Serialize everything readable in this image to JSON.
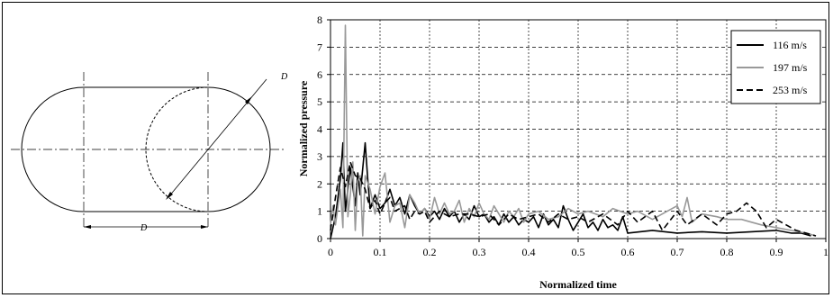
{
  "diagram": {
    "diameter_label_diag": "D",
    "diameter_label_bottom": "D"
  },
  "chart_data": {
    "type": "line",
    "xlabel": "Normalized time",
    "ylabel": "Normalized pressure",
    "xlim": [
      0,
      1
    ],
    "ylim": [
      0,
      8
    ],
    "xticks": [
      0,
      0.1,
      0.2,
      0.3,
      0.4,
      0.5,
      0.6,
      0.7,
      0.8,
      0.9,
      1
    ],
    "xtick_labels": [
      "0",
      "0.1",
      "0.2",
      "0.3",
      "0.4",
      "0.5",
      "0.6",
      "0.7",
      "0.8",
      "0.9",
      "1"
    ],
    "yticks": [
      0,
      1,
      2,
      3,
      4,
      5,
      6,
      7,
      8
    ],
    "ytick_labels": [
      "0",
      "1",
      "2",
      "3",
      "4",
      "5",
      "6",
      "7",
      "8"
    ],
    "grid": "dashed",
    "legend_position": "top-right",
    "series": [
      {
        "name": "116 m/s",
        "color": "#000000",
        "dash": "solid",
        "x": [
          0,
          0.01,
          0.02,
          0.025,
          0.03,
          0.04,
          0.05,
          0.055,
          0.06,
          0.07,
          0.075,
          0.08,
          0.09,
          0.1,
          0.11,
          0.12,
          0.13,
          0.14,
          0.15,
          0.16,
          0.17,
          0.18,
          0.19,
          0.2,
          0.21,
          0.22,
          0.23,
          0.24,
          0.25,
          0.26,
          0.27,
          0.28,
          0.29,
          0.3,
          0.31,
          0.32,
          0.33,
          0.34,
          0.35,
          0.36,
          0.37,
          0.38,
          0.39,
          0.4,
          0.41,
          0.42,
          0.43,
          0.44,
          0.45,
          0.46,
          0.47,
          0.48,
          0.49,
          0.5,
          0.51,
          0.52,
          0.53,
          0.54,
          0.55,
          0.56,
          0.57,
          0.58,
          0.59,
          0.6,
          0.65,
          0.7,
          0.75,
          0.8,
          0.85,
          0.9,
          0.93,
          0.95,
          0.97
        ],
        "values": [
          0,
          0.8,
          2.2,
          3.5,
          1.0,
          2.6,
          1.2,
          2.4,
          1.6,
          3.5,
          2.2,
          1.1,
          1.6,
          1.1,
          1.3,
          1.8,
          1.2,
          1.5,
          0.9,
          1.6,
          1.2,
          0.9,
          1.1,
          0.8,
          1.0,
          0.7,
          1.1,
          0.8,
          1.0,
          0.6,
          0.9,
          0.7,
          1.2,
          0.8,
          0.9,
          0.6,
          0.8,
          0.5,
          0.9,
          0.6,
          0.8,
          0.5,
          0.7,
          0.6,
          0.8,
          0.4,
          0.9,
          0.5,
          0.7,
          0.4,
          1.2,
          0.7,
          0.3,
          0.6,
          0.9,
          0.4,
          0.6,
          0.3,
          0.7,
          0.4,
          0.5,
          0.3,
          0.8,
          0.2,
          0.3,
          0.2,
          0.25,
          0.2,
          0.25,
          0.3,
          0.2,
          0.2,
          0.1
        ]
      },
      {
        "name": "197 m/s",
        "color": "#999999",
        "dash": "solid",
        "x": [
          0,
          0.005,
          0.01,
          0.02,
          0.025,
          0.03,
          0.035,
          0.04,
          0.045,
          0.05,
          0.055,
          0.06,
          0.065,
          0.07,
          0.08,
          0.09,
          0.1,
          0.11,
          0.12,
          0.13,
          0.14,
          0.15,
          0.16,
          0.17,
          0.18,
          0.19,
          0.2,
          0.21,
          0.22,
          0.23,
          0.24,
          0.25,
          0.26,
          0.27,
          0.28,
          0.29,
          0.3,
          0.31,
          0.32,
          0.33,
          0.34,
          0.35,
          0.36,
          0.37,
          0.38,
          0.39,
          0.4,
          0.42,
          0.44,
          0.46,
          0.48,
          0.5,
          0.52,
          0.55,
          0.57,
          0.6,
          0.62,
          0.65,
          0.68,
          0.7,
          0.71,
          0.72,
          0.73,
          0.75,
          0.78,
          0.8,
          0.83,
          0.85,
          0.87,
          0.9,
          0.93,
          0.96,
          0.98
        ],
        "values": [
          0.5,
          1.2,
          0.5,
          1.8,
          0.4,
          7.8,
          0.8,
          1.6,
          2.8,
          0.3,
          2.1,
          2.3,
          0.1,
          2.3,
          1.8,
          0.9,
          1.9,
          2.4,
          0.6,
          1.2,
          1.3,
          0.4,
          1.6,
          1.3,
          0.9,
          1.1,
          0.7,
          1.5,
          0.9,
          1.3,
          0.9,
          1.0,
          1.4,
          0.6,
          1.1,
          0.8,
          1.3,
          0.9,
          0.7,
          1.2,
          0.9,
          0.6,
          1.0,
          0.8,
          1.1,
          0.6,
          0.9,
          1.0,
          0.7,
          0.8,
          1.1,
          0.9,
          1.0,
          0.8,
          1.1,
          0.9,
          1.0,
          0.7,
          1.0,
          1.2,
          0.8,
          1.5,
          0.6,
          0.9,
          0.8,
          0.7,
          0.7,
          0.6,
          0.5,
          0.4,
          0.3,
          0.2,
          0.1
        ]
      },
      {
        "name": "253 m/s",
        "color": "#000000",
        "dash": "dashed",
        "x": [
          0,
          0.01,
          0.02,
          0.03,
          0.04,
          0.05,
          0.06,
          0.07,
          0.08,
          0.09,
          0.1,
          0.11,
          0.12,
          0.13,
          0.14,
          0.15,
          0.16,
          0.17,
          0.18,
          0.19,
          0.2,
          0.22,
          0.24,
          0.26,
          0.28,
          0.3,
          0.32,
          0.34,
          0.36,
          0.38,
          0.4,
          0.42,
          0.44,
          0.46,
          0.48,
          0.5,
          0.52,
          0.55,
          0.58,
          0.6,
          0.62,
          0.65,
          0.67,
          0.7,
          0.72,
          0.75,
          0.78,
          0.8,
          0.82,
          0.84,
          0.86,
          0.88,
          0.9,
          0.92,
          0.94,
          0.96,
          0.98
        ],
        "values": [
          0.3,
          1.5,
          2.6,
          1.9,
          2.8,
          2.3,
          2.2,
          1.8,
          1.1,
          1.4,
          0.9,
          1.3,
          1.5,
          1.0,
          1.1,
          1.2,
          0.7,
          1.0,
          0.9,
          1.0,
          0.6,
          1.0,
          0.8,
          0.9,
          0.9,
          0.8,
          0.9,
          0.5,
          0.9,
          0.7,
          0.8,
          0.9,
          0.6,
          0.9,
          0.7,
          0.8,
          0.6,
          0.9,
          0.5,
          1.0,
          0.6,
          1.0,
          0.3,
          1.0,
          0.5,
          0.9,
          0.5,
          0.9,
          1.0,
          1.3,
          1.0,
          0.4,
          0.7,
          0.5,
          0.3,
          0.2,
          0.1
        ]
      }
    ]
  }
}
